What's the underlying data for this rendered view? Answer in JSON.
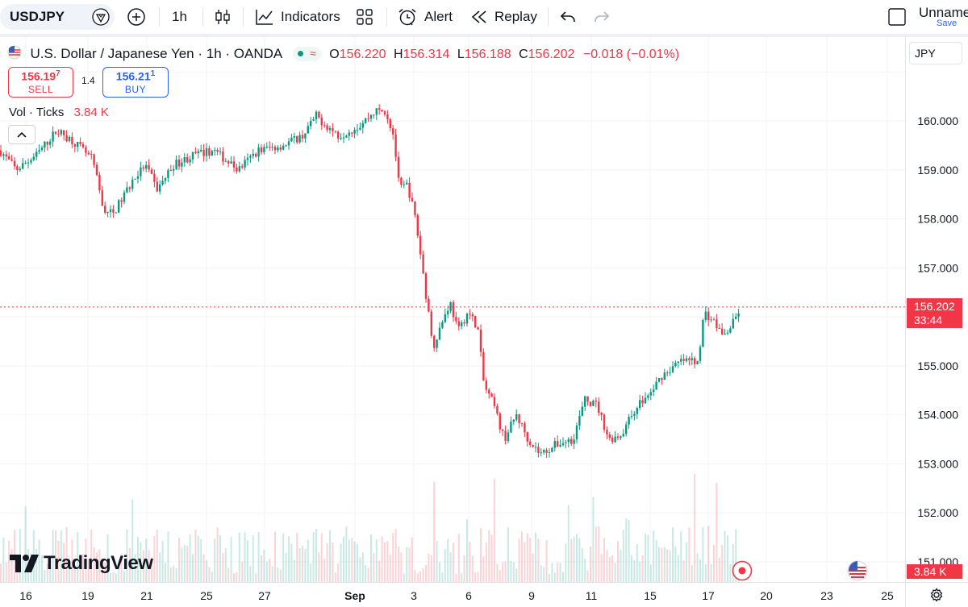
{
  "toolbar": {
    "symbol": "USDJPY",
    "interval": "1h",
    "indicators_label": "Indicators",
    "alert_label": "Alert",
    "replay_label": "Replay",
    "layout_name": "Unname",
    "save_label": "Save"
  },
  "legend": {
    "title": "U.S. Dollar / Japanese Yen · 1h · OANDA",
    "o_key": "O",
    "o_val": "156.220",
    "h_key": "H",
    "h_val": "156.314",
    "l_key": "L",
    "l_val": "156.188",
    "c_key": "C",
    "c_val": "156.202",
    "change": "−0.018 (−0.01%)",
    "sell_price": "156.19",
    "sell_sup": "7",
    "sell_label": "SELL",
    "spread": "1.4",
    "buy_price": "156.21",
    "buy_sup": "1",
    "buy_label": "BUY",
    "vol_label": "Vol · Ticks",
    "vol_value": "3.84 K"
  },
  "price_axis": {
    "currency": "JPY",
    "ticks": [
      "160.000",
      "159.000",
      "158.000",
      "157.000",
      "155.000",
      "154.000",
      "153.000",
      "152.000",
      "151.000"
    ],
    "last_price": "156.202",
    "countdown": "33:44",
    "volume_label": "3.84 K"
  },
  "time_axis": {
    "ticks": [
      "16",
      "19",
      "21",
      "25",
      "27",
      "Sep",
      "3",
      "6",
      "9",
      "11",
      "15",
      "17",
      "20",
      "23",
      "25"
    ]
  },
  "branding": {
    "logo_text": "TradingView"
  },
  "colors": {
    "up": "#089981",
    "down": "#f23645",
    "accent": "#2962ff"
  },
  "chart_data": {
    "type": "candlestick",
    "series_symbol": "USDJPY",
    "interval": "1h",
    "ylim": [
      150.6,
      161.3
    ],
    "last_price": 156.202,
    "anchors": [
      {
        "t": 0,
        "p": 159.4
      },
      {
        "t": 20,
        "p": 159.0
      },
      {
        "t": 45,
        "p": 159.3
      },
      {
        "t": 70,
        "p": 159.8
      },
      {
        "t": 90,
        "p": 159.6
      },
      {
        "t": 115,
        "p": 159.2
      },
      {
        "t": 128,
        "p": 158.2
      },
      {
        "t": 140,
        "p": 158.1
      },
      {
        "t": 165,
        "p": 158.8
      },
      {
        "t": 180,
        "p": 159.1
      },
      {
        "t": 195,
        "p": 158.6
      },
      {
        "t": 215,
        "p": 159.1
      },
      {
        "t": 240,
        "p": 159.3
      },
      {
        "t": 265,
        "p": 159.4
      },
      {
        "t": 295,
        "p": 159.0
      },
      {
        "t": 320,
        "p": 159.4
      },
      {
        "t": 350,
        "p": 159.5
      },
      {
        "t": 375,
        "p": 159.7
      },
      {
        "t": 392,
        "p": 160.1
      },
      {
        "t": 405,
        "p": 159.9
      },
      {
        "t": 420,
        "p": 159.7
      },
      {
        "t": 445,
        "p": 159.9
      },
      {
        "t": 465,
        "p": 160.2
      },
      {
        "t": 478,
        "p": 160.2
      },
      {
        "t": 488,
        "p": 159.7
      },
      {
        "t": 495,
        "p": 158.6
      },
      {
        "t": 505,
        "p": 158.7
      },
      {
        "t": 515,
        "p": 158.0
      },
      {
        "t": 522,
        "p": 157.2
      },
      {
        "t": 530,
        "p": 156.2
      },
      {
        "t": 537,
        "p": 155.4
      },
      {
        "t": 548,
        "p": 155.9
      },
      {
        "t": 558,
        "p": 156.3
      },
      {
        "t": 568,
        "p": 155.7
      },
      {
        "t": 580,
        "p": 156.1
      },
      {
        "t": 592,
        "p": 155.8
      },
      {
        "t": 600,
        "p": 154.6
      },
      {
        "t": 612,
        "p": 154.2
      },
      {
        "t": 625,
        "p": 153.5
      },
      {
        "t": 640,
        "p": 154.0
      },
      {
        "t": 655,
        "p": 153.5
      },
      {
        "t": 670,
        "p": 153.2
      },
      {
        "t": 690,
        "p": 153.4
      },
      {
        "t": 710,
        "p": 153.5
      },
      {
        "t": 725,
        "p": 154.3
      },
      {
        "t": 740,
        "p": 154.2
      },
      {
        "t": 755,
        "p": 153.5
      },
      {
        "t": 770,
        "p": 153.6
      },
      {
        "t": 790,
        "p": 154.2
      },
      {
        "t": 805,
        "p": 154.4
      },
      {
        "t": 820,
        "p": 154.8
      },
      {
        "t": 845,
        "p": 155.1
      },
      {
        "t": 865,
        "p": 155.1
      },
      {
        "t": 873,
        "p": 156.1
      },
      {
        "t": 885,
        "p": 155.9
      },
      {
        "t": 897,
        "p": 155.6
      },
      {
        "t": 910,
        "p": 155.9
      },
      {
        "t": 918,
        "p": 156.2
      }
    ]
  }
}
